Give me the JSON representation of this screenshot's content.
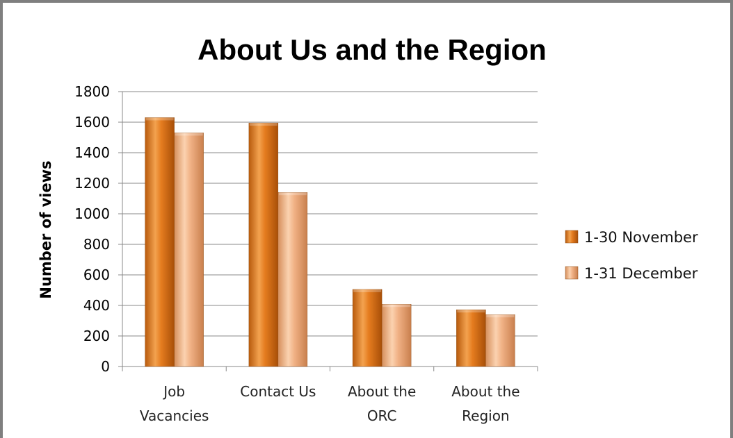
{
  "chart_data": {
    "type": "bar",
    "title": "About Us and the Region",
    "xlabel": "",
    "ylabel": "Number of views",
    "ylim": [
      0,
      1800
    ],
    "yticks": [
      0,
      200,
      400,
      600,
      800,
      1000,
      1200,
      1400,
      1600,
      1800
    ],
    "categories": [
      [
        "Job",
        "Vacancies"
      ],
      [
        "Contact Us"
      ],
      [
        "About the",
        "ORC"
      ],
      [
        "About the",
        "Region"
      ]
    ],
    "series": [
      {
        "name": "1-30 November",
        "values": [
          1630,
          1595,
          505,
          372
        ],
        "color": "#e0751a"
      },
      {
        "name": "1-31 December",
        "values": [
          1530,
          1140,
          408,
          340
        ],
        "color": "#f2b07f"
      }
    ],
    "grid": true,
    "legend_position": "right"
  }
}
